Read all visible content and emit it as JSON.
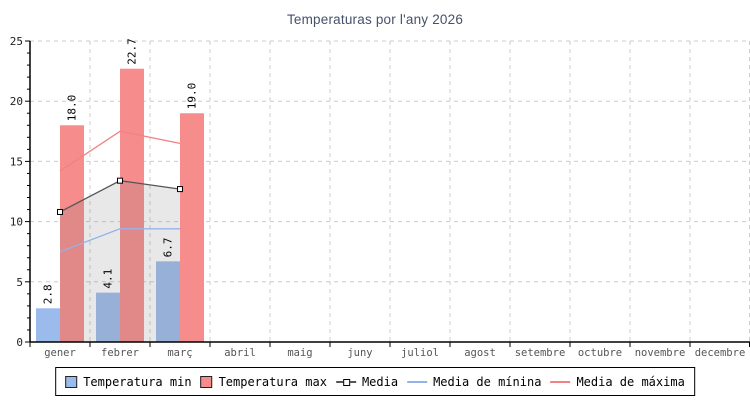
{
  "title": "Temperaturas por l'any 2026",
  "colors": {
    "bar_min": "#9bbbec",
    "bar_max": "#f78c8c",
    "media_line": "#555555",
    "media_marker_fill": "#ffffff",
    "media_marker_border": "#000000",
    "media_minima_line": "#93b2ea",
    "media_maxima_line": "#f28282",
    "area_fill": "rgba(130,130,130,0.18)",
    "grid": "#cccccc",
    "axis": "#000000",
    "title_text": "#46516b"
  },
  "chart_data": {
    "type": "bar",
    "subtype": "bar+line combo",
    "title": "Temperaturas por l'any 2026",
    "xlabel": "",
    "ylabel": "",
    "ylim": [
      0,
      25
    ],
    "y_ticks": [
      0,
      5,
      10,
      15,
      20,
      25
    ],
    "y_minor_step": 1,
    "grid": "dashed, horizontal at major ticks and vertical at category boundaries",
    "legend_position": "bottom",
    "categories": [
      "gener",
      "febrer",
      "març",
      "abril",
      "maig",
      "juny",
      "juliol",
      "agost",
      "setembre",
      "octubre",
      "novembre",
      "decembre"
    ],
    "bar_series": [
      {
        "name": "Temperatura min",
        "color": "#9bbbec",
        "values": [
          2.8,
          4.1,
          6.7,
          null,
          null,
          null,
          null,
          null,
          null,
          null,
          null,
          null
        ],
        "labels": [
          "2.8",
          "4.1",
          "6.7"
        ]
      },
      {
        "name": "Temperatura max",
        "color": "#f78c8c",
        "values": [
          18.0,
          22.7,
          19.0,
          null,
          null,
          null,
          null,
          null,
          null,
          null,
          null,
          null
        ],
        "labels": [
          "18.0",
          "22.7",
          "19.0"
        ]
      }
    ],
    "line_series": [
      {
        "name": "Media",
        "color": "#555555",
        "marker": "square",
        "area": true,
        "values": [
          10.8,
          13.4,
          12.7,
          null,
          null,
          null,
          null,
          null,
          null,
          null,
          null,
          null
        ]
      },
      {
        "name": "Media de mínina",
        "color": "#93b2ea",
        "marker": "none",
        "area": false,
        "values": [
          7.5,
          9.4,
          9.4,
          null,
          null,
          null,
          null,
          null,
          null,
          null,
          null,
          null
        ]
      },
      {
        "name": "Media de máxima",
        "color": "#f28282",
        "marker": "none",
        "area": false,
        "values": [
          14.2,
          17.5,
          16.5,
          null,
          null,
          null,
          null,
          null,
          null,
          null,
          null,
          null
        ]
      }
    ]
  },
  "legend": {
    "items": [
      {
        "label": "Temperatura min",
        "glyph": "blue-swatch"
      },
      {
        "label": "Temperatura max",
        "glyph": "red-swatch"
      },
      {
        "label": "Media",
        "glyph": "line-with-square-marker"
      },
      {
        "label": "Media de mínina",
        "glyph": "blue-line"
      },
      {
        "label": "Media de máxima",
        "glyph": "red-line"
      }
    ]
  }
}
